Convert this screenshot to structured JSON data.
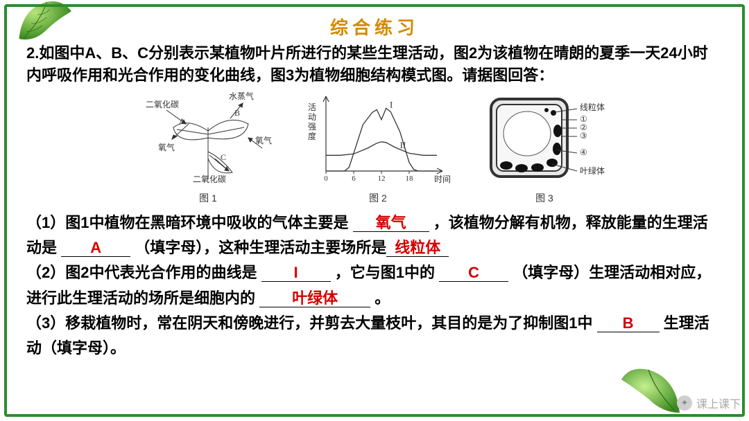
{
  "title": "综合练习",
  "question": "2.如图中A、B、C分别表示某植物叶片所进行的某些生理活动，图2为该植物在晴朗的夏季一天24小时内呼吸作用和光合作用的变化曲线，图3为植物细胞结构模式图。请据图回答：",
  "figures": {
    "fig1": {
      "caption": "图 1",
      "labels": {
        "co2_in": "二氧化碳",
        "water_vapor": "水蒸气",
        "A": "A",
        "B": "B",
        "o2_left": "氧气",
        "o2_right": "氧气",
        "co2_out": "二氧化碳",
        "C": "C"
      },
      "colors": {
        "leaf_fill": "#ffffff",
        "leaf_stroke": "#333333",
        "text": "#333333"
      }
    },
    "fig2": {
      "caption": "图 2",
      "type": "line",
      "ylabel": "活动强度",
      "xlabel": "时间",
      "xticks": [
        0,
        6,
        12,
        18
      ],
      "xlim": [
        0,
        24
      ],
      "ylim": [
        0,
        10
      ],
      "curves": {
        "I": {
          "label": "I",
          "points": [
            [
              0,
              0
            ],
            [
              4,
              0
            ],
            [
              5,
              0.5
            ],
            [
              6,
              2.5
            ],
            [
              8,
              6.5
            ],
            [
              10,
              8.2
            ],
            [
              11,
              8.6
            ],
            [
              12,
              7.2
            ],
            [
              13,
              8.8
            ],
            [
              14,
              8.3
            ],
            [
              16,
              5.5
            ],
            [
              18,
              1.2
            ],
            [
              19,
              0.2
            ],
            [
              20,
              0
            ],
            [
              24,
              0
            ]
          ]
        },
        "II": {
          "label": "II",
          "points": [
            [
              0,
              2.2
            ],
            [
              3,
              2.2
            ],
            [
              6,
              2.4
            ],
            [
              9,
              3.2
            ],
            [
              11,
              3.9
            ],
            [
              12,
              4.1
            ],
            [
              13,
              4.0
            ],
            [
              15,
              3.3
            ],
            [
              18,
              2.5
            ],
            [
              21,
              2.2
            ],
            [
              24,
              2.2
            ]
          ]
        }
      },
      "colors": {
        "axis": "#333333",
        "line": "#333333",
        "bg": "#ffffff",
        "label_fontsize": 12
      }
    },
    "fig3": {
      "caption": "图 3",
      "labels": {
        "mitochondria": "线粒体",
        "chloroplast": "叶绿体",
        "n1": "①",
        "n2": "②",
        "n3": "③",
        "n4": "④"
      },
      "colors": {
        "wall": "#333333",
        "fill": "#dddddd",
        "organelle": "#111111"
      }
    }
  },
  "body": {
    "p1_a": "（1）图1中植物在黑暗环境中吸收的气体主要是",
    "p1_ans1": "氧气",
    "p1_b": "，该植物分解有机物，释放能量的生理活动是",
    "p1_ans2": "A",
    "p1_c": "（填字母），这种生理活动主要场所是",
    "p1_ans3": "线粒体",
    "p2_a": "（2）图2中代表光合作用的曲线是",
    "p2_ans1": "I",
    "p2_b": "，它与图1中的",
    "p2_ans2": "C",
    "p2_c": "（填字母）生理活动相对应，进行此生理活动的场所是细胞内的",
    "p2_ans3": "叶绿体",
    "p2_d": "。",
    "p3_a": "（3）移栽植物时，常在阴天和傍晚进行，并剪去大量枝叶，其目的是为了抑制图1中",
    "p3_ans1": "B",
    "p3_b": "生理活动（填字母）。"
  },
  "watermark": "课上课下",
  "palette": {
    "border": "#2e8b2e",
    "title": "#d48a00",
    "text": "#000000",
    "answer": "#d40000",
    "leaf_light": "#8fd04a",
    "leaf_dark": "#3a8a1f",
    "bg": "#ffffff"
  }
}
